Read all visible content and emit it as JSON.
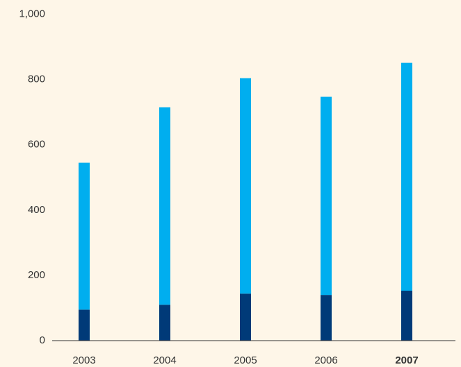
{
  "chart_data": {
    "type": "stacked_bar",
    "categories": [
      "2003",
      "2004",
      "2005",
      "2006",
      "2007"
    ],
    "series": [
      {
        "color": "#003a78",
        "values": [
          95,
          110,
          144,
          140,
          153
        ]
      },
      {
        "color": "#00aeef",
        "values": [
          450,
          605,
          660,
          607,
          698
        ]
      }
    ],
    "ylim": [
      0,
      1000
    ],
    "yticks": [
      0,
      200,
      400,
      600,
      800,
      {
        "value": 1000,
        "label": "1,000"
      }
    ],
    "grid": false,
    "highlight_index": 4
  }
}
